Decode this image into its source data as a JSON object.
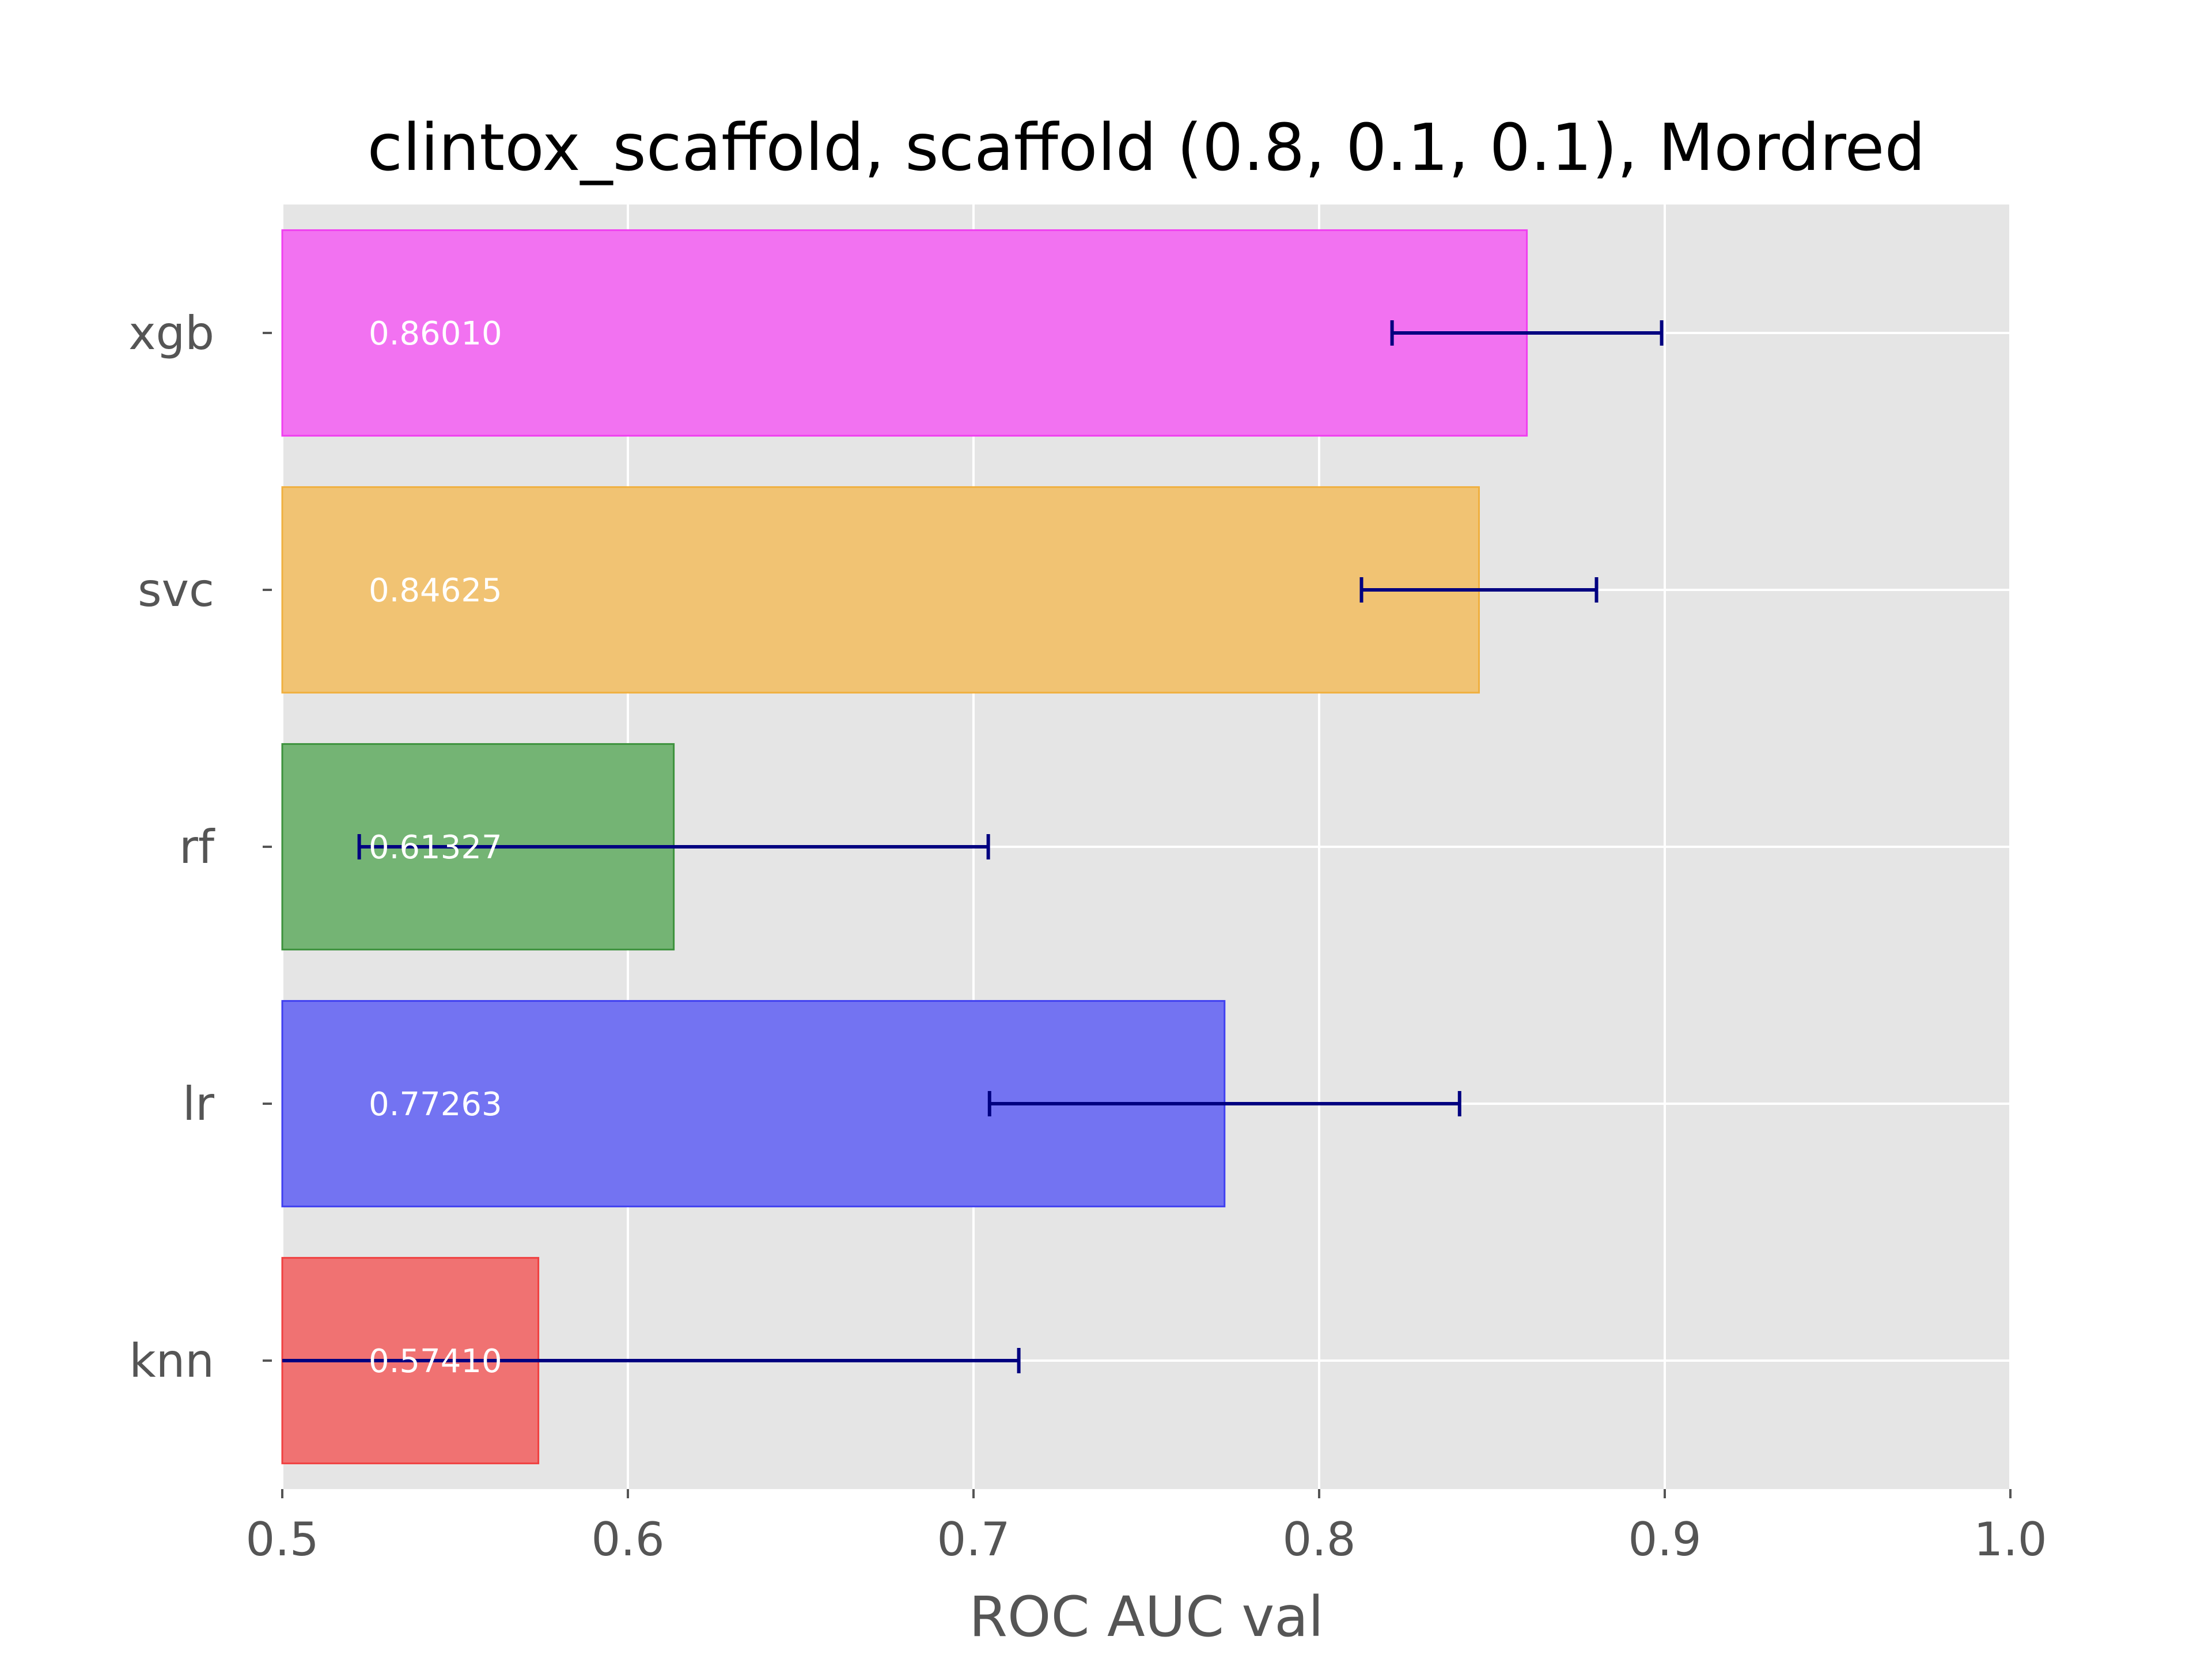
{
  "chart_data": {
    "type": "bar",
    "orientation": "horizontal",
    "title": "clintox_scaffold, scaffold (0.8, 0.1, 0.1), Mordred",
    "xlabel": "ROC AUC val",
    "ylabel": "",
    "xlim": [
      0.5,
      1.0
    ],
    "xticks": [
      "0.5",
      "0.6",
      "0.7",
      "0.8",
      "0.9",
      "1.0"
    ],
    "grid": true,
    "categories": [
      "knn",
      "lr",
      "rf",
      "svc",
      "xgb"
    ],
    "values": [
      0.5741,
      0.77263,
      0.61327,
      0.84625,
      0.8601
    ],
    "value_labels": [
      "0.57410",
      "0.77263",
      "0.61327",
      "0.84625",
      "0.86010"
    ],
    "errors": [
      0.139,
      0.068,
      0.091,
      0.034,
      0.039
    ],
    "colors": [
      "#f07272",
      "#7373f2",
      "#74b474",
      "#f1c373",
      "#f272f1"
    ],
    "edge_colors": [
      "#f04040",
      "#4040f0",
      "#3d923d",
      "#f0b040",
      "#f040f0"
    ],
    "error_color": "#000080",
    "background": "#e5e5e5"
  }
}
